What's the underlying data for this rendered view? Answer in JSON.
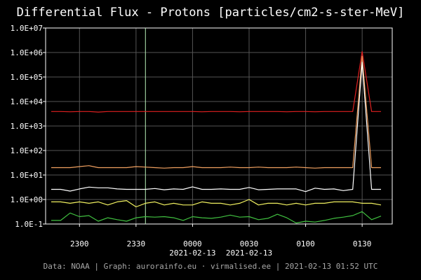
{
  "chart_data": {
    "type": "line",
    "title": "Differential Flux - Protons [particles/cm2-s-ster-MeV]",
    "footer": "Data: NOAA | Graph: aurorainfo.eu · virmalised.ee | 2021-02-13 01:52 UTC",
    "y_scale": "log",
    "ylim": [
      0.1,
      10000000
    ],
    "y_ticks": [
      {
        "value": 0.1,
        "label": "1.0E-1"
      },
      {
        "value": 1,
        "label": "1.0E+00"
      },
      {
        "value": 10,
        "label": "1.0E+01"
      },
      {
        "value": 100,
        "label": "1.0E+02"
      },
      {
        "value": 1000,
        "label": "1.0E+03"
      },
      {
        "value": 10000,
        "label": "1.0E+04"
      },
      {
        "value": 100000,
        "label": "1.0E+05"
      },
      {
        "value": 1000000,
        "label": "1.0E+06"
      },
      {
        "value": 10000000,
        "label": "1.0E+07"
      }
    ],
    "xlim": [
      "2021-02-12 22:45",
      "2021-02-13 01:40"
    ],
    "x_ticks": [
      {
        "value": "2021-02-12 23:00",
        "label": "2300",
        "date": ""
      },
      {
        "value": "2021-02-12 23:30",
        "label": "2330",
        "date": ""
      },
      {
        "value": "2021-02-13 00:00",
        "label": "0000",
        "date": "2021-02-13"
      },
      {
        "value": "2021-02-13 00:30",
        "label": "0030",
        "date": "2021-02-13"
      },
      {
        "value": "2021-02-13 01:00",
        "label": "0100",
        "date": ""
      },
      {
        "value": "2021-02-13 01:30",
        "label": "0130",
        "date": ""
      }
    ],
    "grid": true,
    "marker_line": {
      "x": "2021-02-12 23:35",
      "color": "#b8f0b8"
    },
    "x": [
      "2021-02-12 22:45",
      "2021-02-12 22:50",
      "2021-02-12 22:55",
      "2021-02-12 23:00",
      "2021-02-12 23:05",
      "2021-02-12 23:10",
      "2021-02-12 23:15",
      "2021-02-12 23:20",
      "2021-02-12 23:25",
      "2021-02-12 23:30",
      "2021-02-12 23:35",
      "2021-02-12 23:40",
      "2021-02-12 23:45",
      "2021-02-12 23:50",
      "2021-02-12 23:55",
      "2021-02-13 00:00",
      "2021-02-13 00:05",
      "2021-02-13 00:10",
      "2021-02-13 00:15",
      "2021-02-13 00:20",
      "2021-02-13 00:25",
      "2021-02-13 00:30",
      "2021-02-13 00:35",
      "2021-02-13 00:40",
      "2021-02-13 00:45",
      "2021-02-13 00:50",
      "2021-02-13 00:55",
      "2021-02-13 01:00",
      "2021-02-13 01:05",
      "2021-02-13 01:10",
      "2021-02-13 01:15",
      "2021-02-13 01:20",
      "2021-02-13 01:25",
      "2021-02-13 01:30",
      "2021-02-13 01:35",
      "2021-02-13 01:40"
    ],
    "series": [
      {
        "color": "#e02020",
        "values": [
          3900,
          3900,
          3800,
          3900,
          3900,
          3700,
          3900,
          3900,
          3900,
          3900,
          3900,
          3900,
          3900,
          3900,
          3900,
          3900,
          3800,
          3900,
          3900,
          3900,
          3800,
          3900,
          3900,
          3900,
          3900,
          3800,
          3900,
          3900,
          3800,
          3900,
          3900,
          3900,
          3900,
          1100000,
          3900,
          3900
        ]
      },
      {
        "color": "#f0a060",
        "values": [
          20,
          20,
          20,
          22,
          24,
          20,
          20,
          20,
          20,
          22,
          21,
          20,
          19,
          20,
          20,
          22,
          20,
          20,
          20,
          21,
          20,
          20,
          21,
          20,
          20,
          20,
          21,
          20,
          19,
          20,
          20,
          20,
          20,
          700000,
          20,
          20
        ]
      },
      {
        "color": "#ffffff",
        "values": [
          2.6,
          2.6,
          2.2,
          2.7,
          3.2,
          3.0,
          3.0,
          2.7,
          2.6,
          2.6,
          2.6,
          2.8,
          2.5,
          2.7,
          2.6,
          3.3,
          2.6,
          2.6,
          2.7,
          2.6,
          2.6,
          3.1,
          2.5,
          2.6,
          2.7,
          2.7,
          2.7,
          2.1,
          2.9,
          2.6,
          2.7,
          2.3,
          2.6,
          400000,
          2.6,
          2.6
        ]
      },
      {
        "color": "#f0f060",
        "values": [
          0.8,
          0.8,
          0.7,
          0.8,
          0.7,
          0.8,
          0.6,
          0.8,
          0.9,
          0.5,
          0.7,
          0.8,
          0.6,
          0.7,
          0.6,
          0.6,
          0.8,
          0.7,
          0.7,
          0.6,
          0.7,
          1.0,
          0.6,
          0.7,
          0.7,
          0.6,
          0.7,
          0.6,
          0.7,
          0.7,
          0.8,
          0.8,
          0.8,
          0.7,
          0.7,
          0.6
        ]
      },
      {
        "color": "#40c040",
        "values": [
          0.14,
          0.14,
          0.28,
          0.2,
          0.22,
          0.13,
          0.18,
          0.15,
          0.13,
          0.18,
          0.2,
          0.19,
          0.2,
          0.18,
          0.14,
          0.2,
          0.18,
          0.17,
          0.19,
          0.23,
          0.19,
          0.2,
          0.15,
          0.17,
          0.25,
          0.18,
          0.11,
          0.13,
          0.12,
          0.14,
          0.17,
          0.19,
          0.22,
          0.32,
          0.15,
          0.21
        ]
      }
    ]
  }
}
